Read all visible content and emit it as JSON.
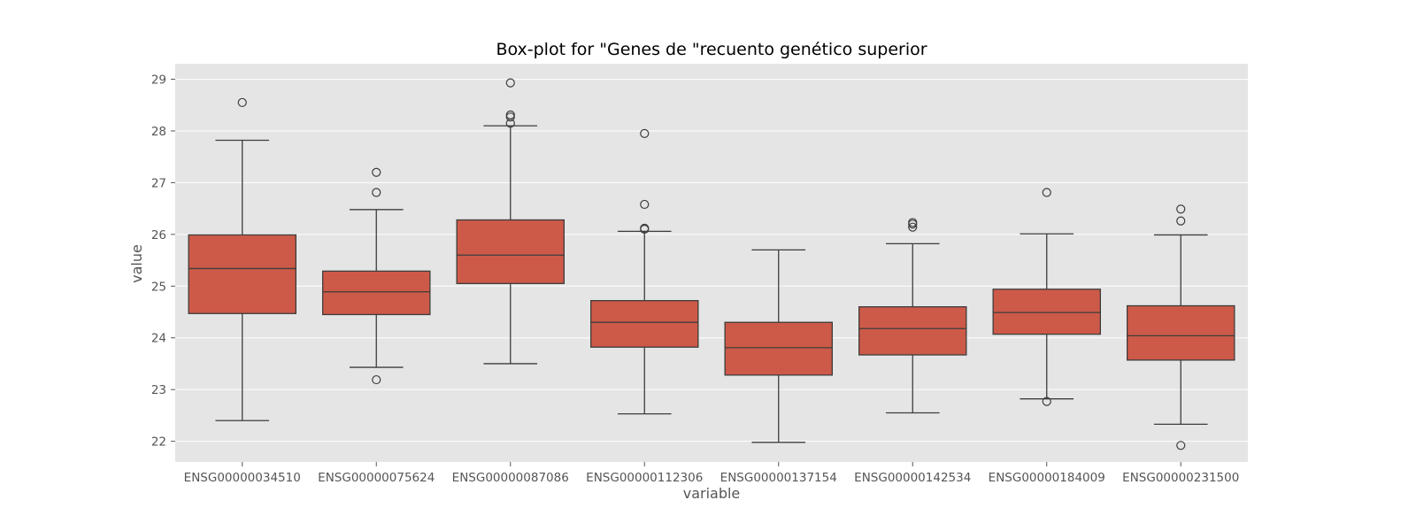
{
  "chart_data": {
    "type": "box",
    "title": "Box-plot for \"Genes de \"recuento genético superior",
    "xlabel": "variable",
    "ylabel": "value",
    "ylim": [
      21.6,
      29.3
    ],
    "yticks": [
      22,
      23,
      24,
      25,
      26,
      27,
      28,
      29
    ],
    "grid": true,
    "style": "ggplot",
    "colors": {
      "background": "#e5e5e5",
      "grid": "#ffffff",
      "box_fill": "#cd5a48",
      "line": "#3d3d3d",
      "text": "#555555",
      "title": "#000000"
    },
    "categories": [
      "ENSG00000034510",
      "ENSG00000075624",
      "ENSG00000087086",
      "ENSG00000112306",
      "ENSG00000137154",
      "ENSG00000142534",
      "ENSG00000184009",
      "ENSG00000231500"
    ],
    "boxes": [
      {
        "whisker_low": 22.4,
        "q1": 24.47,
        "median": 25.34,
        "q3": 25.99,
        "whisker_high": 27.82,
        "outliers": [
          28.55
        ]
      },
      {
        "whisker_low": 23.43,
        "q1": 24.45,
        "median": 24.89,
        "q3": 25.29,
        "whisker_high": 26.48,
        "outliers": [
          27.2,
          26.81,
          23.19
        ]
      },
      {
        "whisker_low": 23.5,
        "q1": 25.05,
        "median": 25.6,
        "q3": 26.28,
        "whisker_high": 28.1,
        "outliers": [
          28.93,
          28.31,
          28.27,
          28.15
        ]
      },
      {
        "whisker_low": 22.53,
        "q1": 23.82,
        "median": 24.3,
        "q3": 24.72,
        "whisker_high": 26.06,
        "outliers": [
          27.95,
          26.58,
          26.12,
          26.1
        ]
      },
      {
        "whisker_low": 21.98,
        "q1": 23.28,
        "median": 23.81,
        "q3": 24.3,
        "whisker_high": 25.7,
        "outliers": []
      },
      {
        "whisker_low": 22.55,
        "q1": 23.67,
        "median": 24.18,
        "q3": 24.6,
        "whisker_high": 25.82,
        "outliers": [
          26.23,
          26.2,
          26.14
        ]
      },
      {
        "whisker_low": 22.82,
        "q1": 24.07,
        "median": 24.49,
        "q3": 24.94,
        "whisker_high": 26.01,
        "outliers": [
          26.81,
          22.77
        ]
      },
      {
        "whisker_low": 22.33,
        "q1": 23.57,
        "median": 24.04,
        "q3": 24.62,
        "whisker_high": 25.99,
        "outliers": [
          26.49,
          26.26,
          21.92
        ]
      }
    ]
  }
}
